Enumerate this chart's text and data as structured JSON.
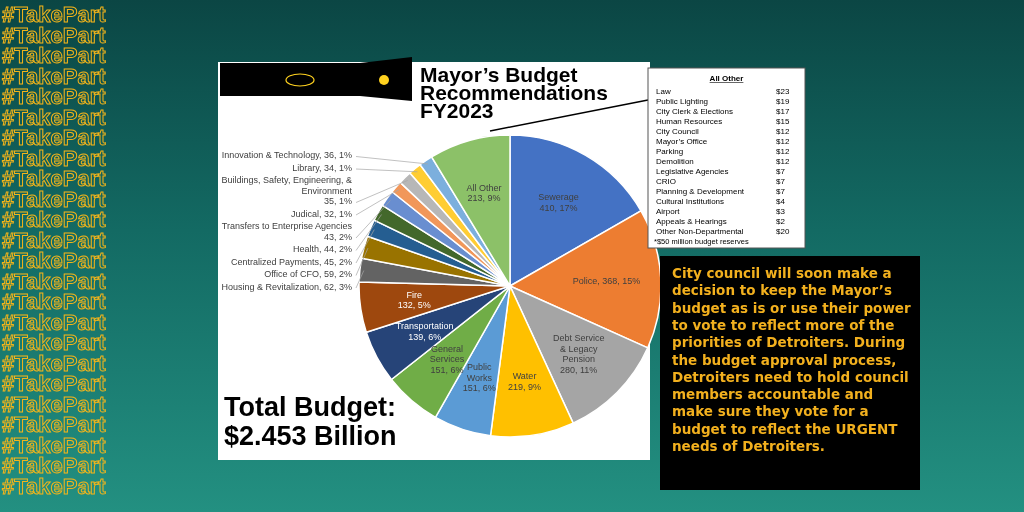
{
  "chart_data": [
    {
      "type": "pie",
      "title": "Mayor’s Budget Recommendations FY2023",
      "categories": [
        "Sewerage",
        "Police",
        "Debt Service & Legacy Pension",
        "Water",
        "Public Works",
        "General Services",
        "Transportation",
        "Fire",
        "Housing & Revitalization",
        "Office of CFO",
        "Centralized Payments",
        "Health",
        "Transfers to Enterprise Agencies",
        "Judical",
        "Buildings, Safety, Engineering, & Environment",
        "Library",
        "Innovation & Technology",
        "All Other"
      ],
      "values": [
        410,
        368,
        280,
        219,
        151,
        151,
        139,
        132,
        62,
        59,
        45,
        44,
        43,
        32,
        35,
        34,
        36,
        213
      ],
      "value_labels": [
        "410, 17%",
        "368, 15%",
        "280, 11%",
        "219, 9%",
        "151, 6%",
        "151, 6%",
        "139, 6%",
        "132, 5%",
        "62, 3%",
        "59, 2%",
        "45, 2%",
        "44, 2%",
        "43, 2%",
        "32, 1%",
        "35, 1%",
        "34, 1%",
        "36, 1%",
        "213, 9%"
      ],
      "colors": [
        "#4472c4",
        "#ed7d31",
        "#a5a5a5",
        "#ffc000",
        "#5b9bd5",
        "#70ad47",
        "#264478",
        "#9e480e",
        "#636363",
        "#997300",
        "#255e91",
        "#43682b",
        "#698ed0",
        "#f1975a",
        "#b7b7b7",
        "#ffcd33",
        "#7cafdd",
        "#8cc168"
      ],
      "annotations": [
        "Total Budget: $2.453 Billion"
      ]
    },
    {
      "type": "other",
      "title": "All Other",
      "categories": [
        "Law",
        "Public Lighting",
        "City Clerk & Elections",
        "Human Resources",
        "City Council",
        "Mayor’s Office",
        "Parking",
        "Demolition",
        "Legislative Agencies",
        "CRIO",
        "Planning & Development",
        "Cultural Institutions",
        "Airport",
        "Appeals & Hearings",
        "Other Non-Departmental"
      ],
      "value_labels": [
        "$23",
        "$19",
        "$17",
        "$15",
        "$12",
        "$12",
        "$12",
        "$12",
        "$7",
        "$7",
        "$7",
        "$4",
        "$3",
        "$2",
        "$20"
      ],
      "annotations": [
        "*$50 million budget reserves"
      ]
    },
    {
      "type": "other",
      "annotations": [
        "City council will soon make a decision to keep the Mayor’s budget as is or use their power to vote to reflect more of the priorities of Detroiters. During the budget approval process, Detroiters need to hold council members accountable and make sure they vote for a budget to reflect the URGENT needs of Detroiters.",
        "#TakePart"
      ]
    }
  ]
}
